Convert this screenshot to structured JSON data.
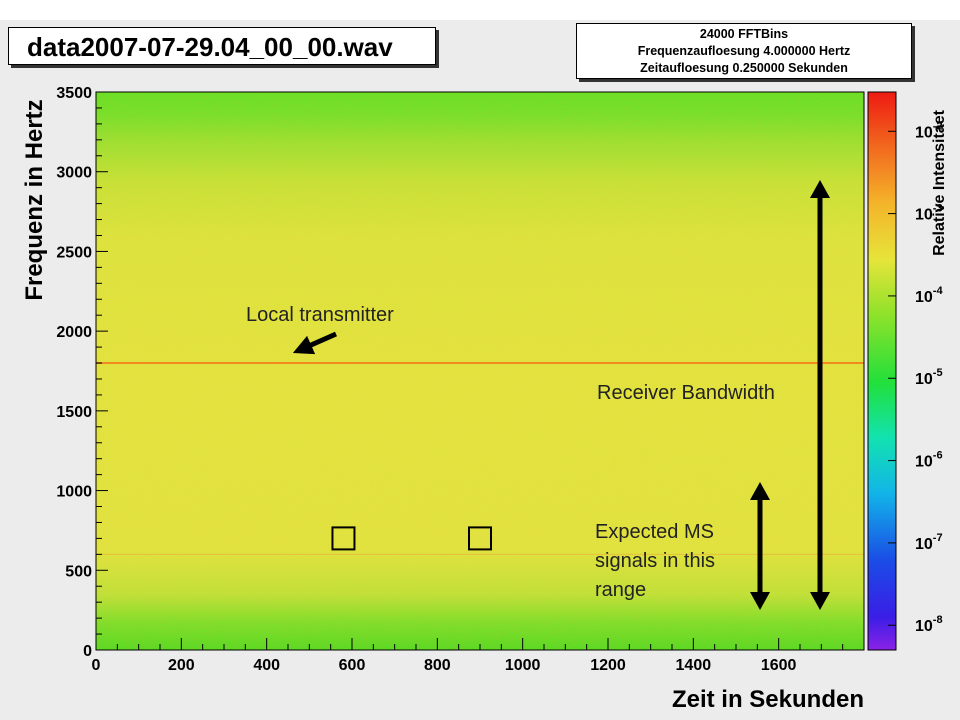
{
  "chart_data": {
    "type": "heatmap",
    "title": "data2007-07-29.04_00_00.wav",
    "info_lines": [
      "24000 FFTBins",
      "Frequenzaufloesung 4.000000 Hertz",
      "Zeitaufloesung 0.250000 Sekunden"
    ],
    "xlabel": "Zeit in Sekunden",
    "ylabel": "Frequenz in Hertz",
    "xlim": [
      0,
      1800
    ],
    "ylim": [
      0,
      3500
    ],
    "x_ticks": [
      0,
      200,
      400,
      600,
      800,
      1000,
      1200,
      1400,
      1600
    ],
    "y_ticks": [
      0,
      500,
      1000,
      1500,
      2000,
      2500,
      3000,
      3500
    ],
    "colorbar": {
      "title": "Relative Intensitaet",
      "scale": "log",
      "ticks": [
        {
          "base": "10",
          "exp": "-2",
          "value": 0.01
        },
        {
          "base": "10",
          "exp": "-3",
          "value": 0.001
        },
        {
          "base": "10",
          "exp": "-4",
          "value": 0.0001
        },
        {
          "base": "10",
          "exp": "-5",
          "value": 1e-05
        },
        {
          "base": "10",
          "exp": "-6",
          "value": 1e-06
        },
        {
          "base": "10",
          "exp": "-7",
          "value": 1e-07
        },
        {
          "base": "10",
          "exp": "-8",
          "value": 1e-08
        }
      ],
      "range": [
        5e-09,
        0.03
      ]
    },
    "features": {
      "transmitter_line_hz": 1800,
      "faint_line_hz": 600,
      "marked_boxes": [
        {
          "x": 580,
          "y": 700
        },
        {
          "x": 900,
          "y": 700
        }
      ]
    },
    "annotations": {
      "local_transmitter": "Local transmitter",
      "receiver_bandwidth": "Receiver Bandwidth",
      "expected_ms": [
        "Expected MS",
        "signals in this",
        "range"
      ]
    }
  }
}
